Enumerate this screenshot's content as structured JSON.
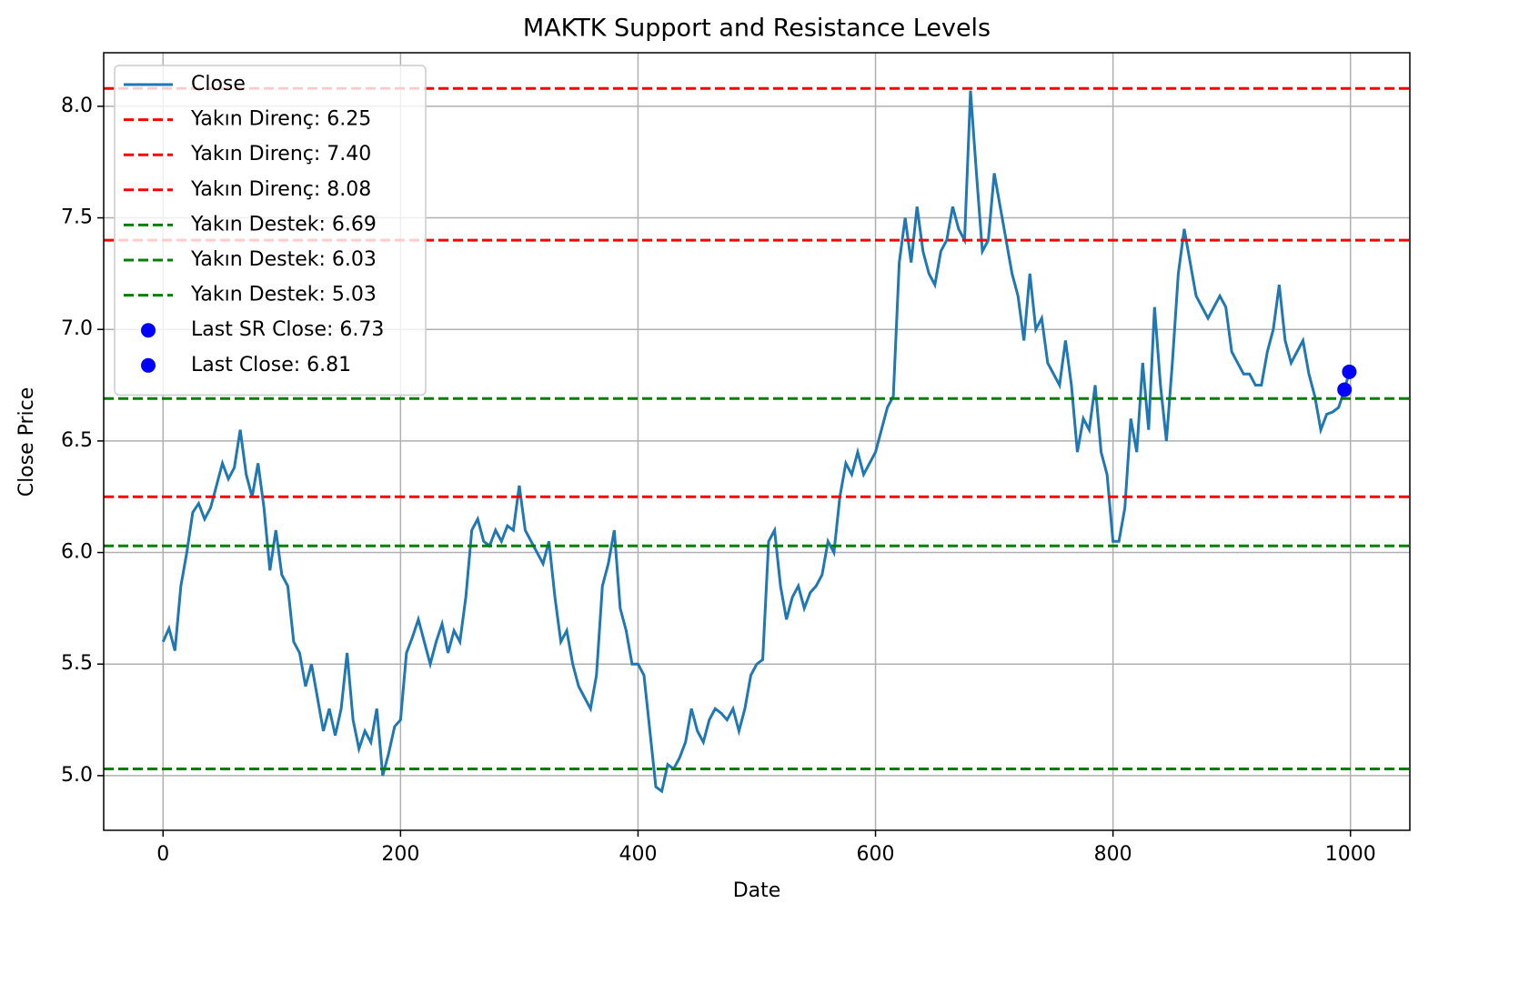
{
  "chart_data": {
    "type": "line",
    "title": "MAKTK Support and Resistance Levels",
    "x_label": "Date",
    "y_label": "Close Price",
    "x": [
      0,
      5,
      10,
      15,
      20,
      25,
      30,
      35,
      40,
      45,
      50,
      55,
      60,
      65,
      70,
      75,
      80,
      85,
      90,
      95,
      100,
      105,
      110,
      115,
      120,
      125,
      130,
      135,
      140,
      145,
      150,
      155,
      160,
      165,
      170,
      175,
      180,
      185,
      190,
      195,
      200,
      205,
      210,
      215,
      220,
      225,
      230,
      235,
      240,
      245,
      250,
      255,
      260,
      265,
      270,
      275,
      280,
      285,
      290,
      295,
      300,
      305,
      310,
      315,
      320,
      325,
      330,
      335,
      340,
      345,
      350,
      355,
      360,
      365,
      370,
      375,
      380,
      385,
      390,
      395,
      400,
      405,
      410,
      415,
      420,
      425,
      430,
      435,
      440,
      445,
      450,
      455,
      460,
      465,
      470,
      475,
      480,
      485,
      490,
      495,
      500,
      505,
      510,
      515,
      520,
      525,
      530,
      535,
      540,
      545,
      550,
      555,
      560,
      565,
      570,
      575,
      580,
      585,
      590,
      595,
      600,
      605,
      610,
      615,
      620,
      625,
      630,
      635,
      640,
      645,
      650,
      655,
      660,
      665,
      670,
      675,
      680,
      685,
      690,
      695,
      700,
      705,
      710,
      715,
      720,
      725,
      730,
      735,
      740,
      745,
      750,
      755,
      760,
      765,
      770,
      775,
      780,
      785,
      790,
      795,
      800,
      805,
      810,
      815,
      820,
      825,
      830,
      835,
      840,
      845,
      850,
      855,
      860,
      865,
      870,
      875,
      880,
      885,
      890,
      895,
      900,
      905,
      910,
      915,
      920,
      925,
      930,
      935,
      940,
      945,
      950,
      955,
      960,
      965,
      970,
      975,
      980,
      985,
      990,
      995,
      999
    ],
    "series": [
      {
        "name": "Close",
        "color": "#1f77b4",
        "values": [
          5.6,
          5.66,
          5.56,
          5.85,
          6.0,
          6.18,
          6.22,
          6.15,
          6.2,
          6.3,
          6.4,
          6.33,
          6.38,
          6.55,
          6.35,
          6.25,
          6.4,
          6.2,
          5.92,
          6.1,
          5.9,
          5.85,
          5.6,
          5.55,
          5.4,
          5.5,
          5.35,
          5.2,
          5.3,
          5.18,
          5.3,
          5.55,
          5.25,
          5.12,
          5.2,
          5.15,
          5.3,
          5.0,
          5.1,
          5.22,
          5.25,
          5.55,
          5.62,
          5.7,
          5.6,
          5.5,
          5.6,
          5.68,
          5.55,
          5.65,
          5.6,
          5.8,
          6.1,
          6.15,
          6.05,
          6.03,
          6.1,
          6.05,
          6.12,
          6.1,
          6.3,
          6.1,
          6.05,
          6.0,
          5.95,
          6.05,
          5.8,
          5.6,
          5.65,
          5.5,
          5.4,
          5.35,
          5.3,
          5.45,
          5.85,
          5.95,
          6.1,
          5.75,
          5.65,
          5.5,
          5.5,
          5.45,
          5.2,
          4.95,
          4.93,
          5.05,
          5.03,
          5.08,
          5.15,
          5.3,
          5.2,
          5.15,
          5.25,
          5.3,
          5.28,
          5.25,
          5.3,
          5.2,
          5.3,
          5.45,
          5.5,
          5.52,
          6.05,
          6.1,
          5.85,
          5.7,
          5.8,
          5.85,
          5.75,
          5.82,
          5.85,
          5.9,
          6.05,
          6.0,
          6.25,
          6.4,
          6.35,
          6.45,
          6.35,
          6.4,
          6.45,
          6.55,
          6.65,
          6.7,
          7.3,
          7.5,
          7.3,
          7.55,
          7.35,
          7.25,
          7.2,
          7.35,
          7.4,
          7.55,
          7.45,
          7.4,
          8.07,
          7.7,
          7.35,
          7.4,
          7.7,
          7.55,
          7.4,
          7.25,
          7.15,
          6.95,
          7.25,
          7.0,
          7.05,
          6.85,
          6.8,
          6.75,
          6.95,
          6.75,
          6.45,
          6.6,
          6.55,
          6.75,
          6.45,
          6.35,
          6.05,
          6.05,
          6.2,
          6.6,
          6.45,
          6.85,
          6.55,
          7.1,
          6.75,
          6.5,
          6.85,
          7.25,
          7.45,
          7.3,
          7.15,
          7.1,
          7.05,
          7.1,
          7.15,
          7.1,
          6.9,
          6.85,
          6.8,
          6.8,
          6.75,
          6.75,
          6.9,
          7.0,
          7.2,
          6.95,
          6.85,
          6.9,
          6.95,
          6.8,
          6.7,
          6.55,
          6.62,
          6.63,
          6.65,
          6.73,
          6.81
        ]
      }
    ],
    "hlines": [
      {
        "name": "Yakın Direnç: 6.25",
        "value": 6.25,
        "color": "#ff0000"
      },
      {
        "name": "Yakın Direnç: 7.40",
        "value": 7.4,
        "color": "#ff0000"
      },
      {
        "name": "Yakın Direnç: 8.08",
        "value": 8.08,
        "color": "#ff0000"
      },
      {
        "name": "Yakın Destek: 6.69",
        "value": 6.69,
        "color": "#008000"
      },
      {
        "name": "Yakın Destek: 6.03",
        "value": 6.03,
        "color": "#008000"
      },
      {
        "name": "Yakın Destek: 5.03",
        "value": 5.03,
        "color": "#008000"
      }
    ],
    "points": [
      {
        "name": "Last SR Close: 6.73",
        "x": 995,
        "y": 6.73,
        "color": "#0000ff"
      },
      {
        "name": "Last Close: 6.81",
        "x": 999,
        "y": 6.81,
        "color": "#0000ff"
      }
    ],
    "xlim": [
      -50,
      1050
    ],
    "ylim": [
      4.755,
      8.24
    ],
    "xticks": [
      0,
      200,
      400,
      600,
      800,
      1000
    ],
    "yticks": [
      {
        "value": 5,
        "label": "5.0"
      },
      5.5,
      {
        "value": 6,
        "label": "6.0"
      },
      6.5,
      {
        "value": 7,
        "label": "7.0"
      },
      7.5,
      {
        "value": 8,
        "label": "8.0"
      }
    ],
    "grid": true,
    "legend": "upper-left"
  }
}
